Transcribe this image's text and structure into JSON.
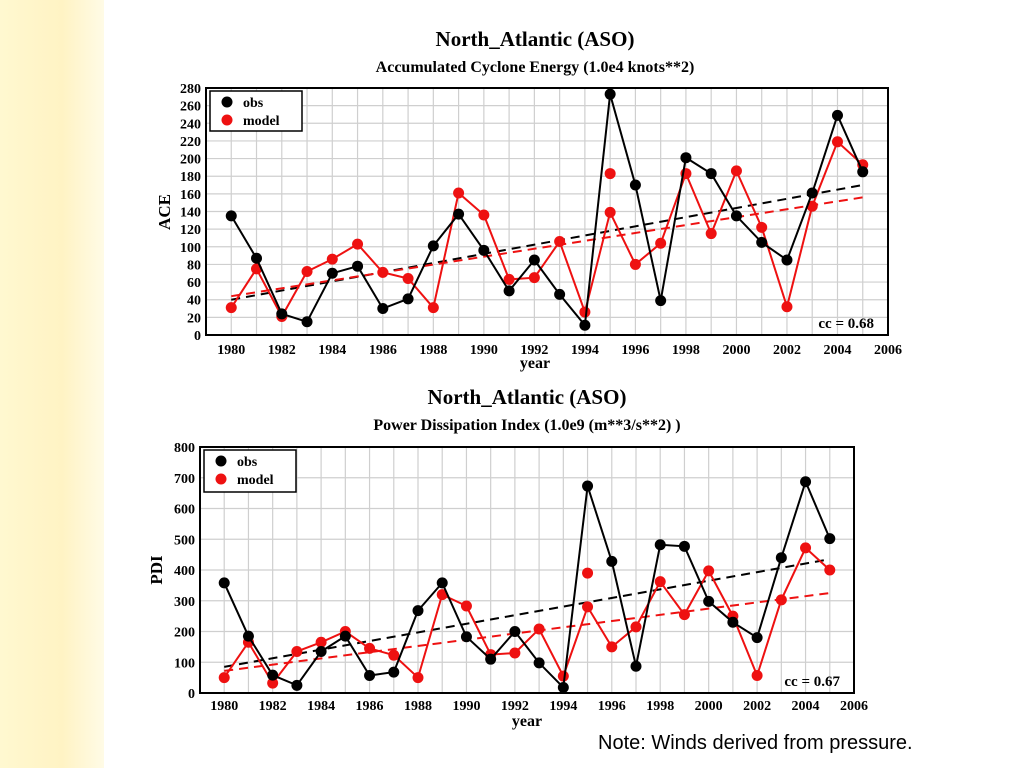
{
  "note": "Note:  Winds derived from pressure.",
  "chart_data": [
    {
      "type": "line",
      "title": "North_Atlantic  (ASO)",
      "subtitle": "Accumulated Cyclone Energy (1.0e4 knots**2)",
      "xlabel": "year",
      "ylabel": "ACE",
      "xlim": [
        1979,
        2006
      ],
      "ylim": [
        0,
        280
      ],
      "xticks": [
        1980,
        1982,
        1984,
        1986,
        1988,
        1990,
        1992,
        1994,
        1996,
        1998,
        2000,
        2002,
        2004,
        2006
      ],
      "yticks": [
        0,
        20,
        40,
        60,
        80,
        100,
        120,
        140,
        160,
        180,
        200,
        220,
        240,
        260,
        280
      ],
      "grid": true,
      "legend_position": "top-left",
      "annotation": "cc = 0.68",
      "x": [
        1980,
        1981,
        1982,
        1983,
        1984,
        1985,
        1986,
        1987,
        1988,
        1989,
        1990,
        1991,
        1992,
        1993,
        1994,
        1995,
        1996,
        1997,
        1998,
        1999,
        2000,
        2001,
        2002,
        2003,
        2004,
        2005
      ],
      "series": [
        {
          "name": "obs",
          "color": "#000000",
          "values": [
            135,
            87,
            24,
            15,
            70,
            78,
            30,
            41,
            101,
            137,
            96,
            50,
            85,
            46,
            11,
            273,
            170,
            39,
            201,
            183,
            135,
            105,
            85,
            161,
            249,
            185
          ]
        },
        {
          "name": "model",
          "color": "#ee1111",
          "values": [
            31,
            75,
            21,
            72,
            86,
            103,
            71,
            64,
            31,
            161,
            136,
            63,
            65,
            106,
            26,
            139,
            80,
            104,
            183,
            115,
            186,
            122,
            32,
            146,
            219,
            193
          ]
        }
      ],
      "extra_points": [
        {
          "series": "model",
          "x": 1995,
          "y": 183
        }
      ],
      "trends": [
        {
          "series": "obs",
          "x": [
            1980,
            2005
          ],
          "y": [
            40,
            170
          ]
        },
        {
          "series": "model",
          "x": [
            1980,
            2005
          ],
          "y": [
            44,
            156
          ]
        }
      ]
    },
    {
      "type": "line",
      "title": "North_Atlantic  (ASO)",
      "subtitle": "Power Dissipation Index (1.0e9 (m**3/s**2) )",
      "xlabel": "year",
      "ylabel": "PDI",
      "xlim": [
        1979,
        2006
      ],
      "ylim": [
        0,
        800
      ],
      "xticks": [
        1980,
        1982,
        1984,
        1986,
        1988,
        1990,
        1992,
        1994,
        1996,
        1998,
        2000,
        2002,
        2004,
        2006
      ],
      "yticks": [
        0,
        100,
        200,
        300,
        400,
        500,
        600,
        700,
        800
      ],
      "grid": true,
      "legend_position": "top-left",
      "annotation": "cc = 0.67",
      "x": [
        1980,
        1981,
        1982,
        1983,
        1984,
        1985,
        1986,
        1987,
        1988,
        1989,
        1990,
        1991,
        1992,
        1993,
        1994,
        1995,
        1996,
        1997,
        1998,
        1999,
        2000,
        2001,
        2002,
        2003,
        2004,
        2005
      ],
      "series": [
        {
          "name": "obs",
          "color": "#000000",
          "values": [
            358,
            185,
            58,
            25,
            135,
            185,
            57,
            68,
            268,
            358,
            183,
            110,
            200,
            98,
            18,
            673,
            428,
            87,
            482,
            477,
            298,
            230,
            180,
            440,
            687,
            502
          ]
        },
        {
          "name": "model",
          "color": "#ee1111",
          "values": [
            50,
            165,
            32,
            135,
            165,
            200,
            145,
            123,
            50,
            320,
            283,
            125,
            130,
            208,
            55,
            280,
            150,
            215,
            362,
            255,
            397,
            250,
            57,
            303,
            472,
            400
          ]
        }
      ],
      "extra_points": [
        {
          "series": "model",
          "x": 1995,
          "y": 390
        }
      ],
      "trends": [
        {
          "series": "obs",
          "x": [
            1980,
            2005
          ],
          "y": [
            85,
            435
          ]
        },
        {
          "series": "model",
          "x": [
            1980,
            2005
          ],
          "y": [
            72,
            325
          ]
        }
      ]
    }
  ]
}
